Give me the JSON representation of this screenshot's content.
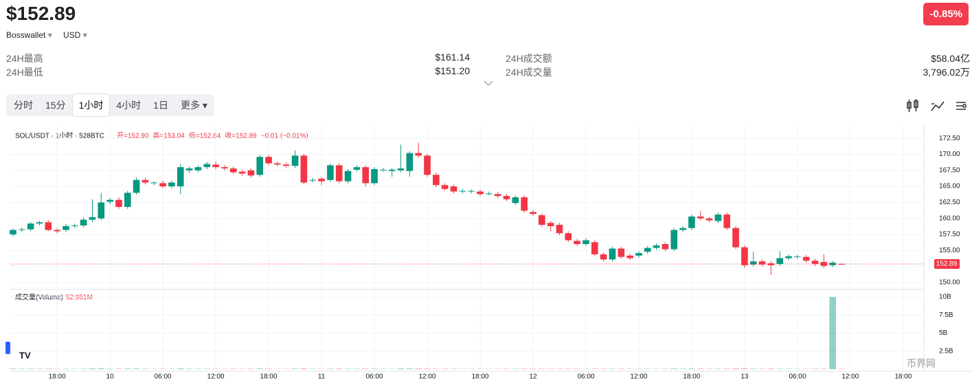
{
  "header": {
    "price": "$152.89",
    "wallet": "Bosswallet",
    "currency": "USD",
    "change": "-0.85%"
  },
  "stats": [
    {
      "label": "24H最高",
      "value": "$161.14"
    },
    {
      "label": "24H最低",
      "value": "$151.20"
    },
    {
      "label": "24H成交额",
      "value": "$58.04亿"
    },
    {
      "label": "24H成交量",
      "value": "3,796.02万"
    }
  ],
  "tabs": [
    "分时",
    "15分",
    "1小时",
    "4小时",
    "1日",
    "更多"
  ],
  "watermark": "币界网",
  "chart_data": {
    "type": "candlestick",
    "legend": {
      "symbol": "SOL/USDT · 1小时 · 528BTC",
      "items": [
        "开=152.90",
        "高=153.04",
        "低=152.84",
        "收=152.89",
        "−0.01 (−0.01%)"
      ]
    },
    "volume_title": "成交量(Volume)",
    "volume_value": "52.951M",
    "last_price": 152.89,
    "up_color": "#089981",
    "down_color": "#f23645",
    "xlim": [
      -0.31,
      103.35
    ],
    "xticks": [
      {
        "value": 5,
        "label": "18:00"
      },
      {
        "value": 11,
        "label": "10"
      },
      {
        "value": 17,
        "label": "06:00"
      },
      {
        "value": 23,
        "label": "12:00"
      },
      {
        "value": 29,
        "label": "18:00"
      },
      {
        "value": 35,
        "label": "11"
      },
      {
        "value": 41,
        "label": "06:00"
      },
      {
        "value": 47,
        "label": "12:00"
      },
      {
        "value": 53,
        "label": "18:00"
      },
      {
        "value": 59,
        "label": "12"
      },
      {
        "value": 65,
        "label": "06:00"
      },
      {
        "value": 71,
        "label": "12:00"
      },
      {
        "value": 77,
        "label": "18:00"
      },
      {
        "value": 83,
        "label": "13"
      },
      {
        "value": 89,
        "label": "06:00"
      },
      {
        "value": 95,
        "label": "12:00"
      },
      {
        "value": 101,
        "label": "18:00"
      }
    ],
    "ylim": [
      149.03,
      174.45
    ],
    "yticks": [
      {
        "value": 150,
        "label": "150.00"
      },
      {
        "value": 152.5,
        "label": "152.50"
      },
      {
        "value": 155,
        "label": "155.00"
      },
      {
        "value": 157.5,
        "label": "157.50"
      },
      {
        "value": 160,
        "label": "160.00"
      },
      {
        "value": 162.5,
        "label": "162.50"
      },
      {
        "value": 165,
        "label": "165.00"
      },
      {
        "value": 167.5,
        "label": "167.50"
      },
      {
        "value": 170,
        "label": "170.00"
      },
      {
        "value": 172.5,
        "label": "172.50"
      }
    ],
    "y2lim": [
      -0.29,
      10.95
    ],
    "y2ticks": [
      {
        "value": 2.5,
        "label": "2.5B"
      },
      {
        "value": 5,
        "label": "5B"
      },
      {
        "value": 7.5,
        "label": "7.5B"
      },
      {
        "value": 10,
        "label": "10B"
      }
    ],
    "candles": [
      [
        157.5,
        158.4,
        157.2,
        158.2
      ],
      [
        158.2,
        158.6,
        157.9,
        158.3
      ],
      [
        158.3,
        159.4,
        158.0,
        159.2
      ],
      [
        159.2,
        159.6,
        158.9,
        159.4
      ],
      [
        159.4,
        159.7,
        158.0,
        158.2
      ],
      [
        158.2,
        158.5,
        157.7,
        158.0
      ],
      [
        158.2,
        159.1,
        157.9,
        158.8
      ],
      [
        158.8,
        159.2,
        158.5,
        158.9
      ],
      [
        158.9,
        160.2,
        158.6,
        159.8
      ],
      [
        159.8,
        163.0,
        159.4,
        160.2
      ],
      [
        160.0,
        164.0,
        159.7,
        162.5
      ],
      [
        162.6,
        163.2,
        162.2,
        162.9
      ],
      [
        162.9,
        163.3,
        161.5,
        161.8
      ],
      [
        161.8,
        164.3,
        161.5,
        164.0
      ],
      [
        164.0,
        166.4,
        163.7,
        166.0
      ],
      [
        166.0,
        166.3,
        165.3,
        165.6
      ],
      [
        165.5,
        165.8,
        165.2,
        165.6
      ],
      [
        165.5,
        165.9,
        164.7,
        165.0
      ],
      [
        165.0,
        165.9,
        164.7,
        165.6
      ],
      [
        165.0,
        168.5,
        163.8,
        168.0
      ],
      [
        167.5,
        168.1,
        167.1,
        167.8
      ],
      [
        167.5,
        168.3,
        167.2,
        168.0
      ],
      [
        168.0,
        168.8,
        167.7,
        168.5
      ],
      [
        168.4,
        168.9,
        167.7,
        168.0
      ],
      [
        168.0,
        168.3,
        167.5,
        167.8
      ],
      [
        167.8,
        168.1,
        166.9,
        167.2
      ],
      [
        167.3,
        167.6,
        166.7,
        167.0
      ],
      [
        167.5,
        167.8,
        166.4,
        166.7
      ],
      [
        166.8,
        169.9,
        166.5,
        169.6
      ],
      [
        169.6,
        169.9,
        168.3,
        168.6
      ],
      [
        168.6,
        168.9,
        168.1,
        168.4
      ],
      [
        168.4,
        168.7,
        167.9,
        168.2
      ],
      [
        168.2,
        170.6,
        167.9,
        169.8
      ],
      [
        169.8,
        170.1,
        165.3,
        165.6
      ],
      [
        165.9,
        166.3,
        165.6,
        166.0
      ],
      [
        166.2,
        166.5,
        165.2,
        165.8
      ],
      [
        166.0,
        168.6,
        165.7,
        168.3
      ],
      [
        168.3,
        168.6,
        165.5,
        165.8
      ],
      [
        165.8,
        167.7,
        165.5,
        167.4
      ],
      [
        167.6,
        168.3,
        167.3,
        168.0
      ],
      [
        168.0,
        168.3,
        165.0,
        165.5
      ],
      [
        165.5,
        168.0,
        165.2,
        167.7
      ],
      [
        167.5,
        167.9,
        167.3,
        167.6
      ],
      [
        167.4,
        167.9,
        166.5,
        167.6
      ],
      [
        167.5,
        171.5,
        167.2,
        167.8
      ],
      [
        167.4,
        170.5,
        166.5,
        170.2
      ],
      [
        170.2,
        171.8,
        169.5,
        169.8
      ],
      [
        169.8,
        170.1,
        166.5,
        166.8
      ],
      [
        166.8,
        167.1,
        164.9,
        165.2
      ],
      [
        165.2,
        165.5,
        164.3,
        164.6
      ],
      [
        165.0,
        165.3,
        163.9,
        164.2
      ],
      [
        164.2,
        164.6,
        163.9,
        164.3
      ],
      [
        164.2,
        164.5,
        163.9,
        164.3
      ],
      [
        164.2,
        164.5,
        163.5,
        163.8
      ],
      [
        163.8,
        164.2,
        163.6,
        163.9
      ],
      [
        163.8,
        164.1,
        163.2,
        163.5
      ],
      [
        163.5,
        163.8,
        162.7,
        163.0
      ],
      [
        162.4,
        163.6,
        162.1,
        163.3
      ],
      [
        163.3,
        163.6,
        160.9,
        161.2
      ],
      [
        161.0,
        161.3,
        160.4,
        160.7
      ],
      [
        160.5,
        160.8,
        158.7,
        159.0
      ],
      [
        159.3,
        159.6,
        158.0,
        158.8
      ],
      [
        159.0,
        159.3,
        157.4,
        157.7
      ],
      [
        157.7,
        158.0,
        156.3,
        156.6
      ],
      [
        156.5,
        156.8,
        155.7,
        156.0
      ],
      [
        156.0,
        156.9,
        155.7,
        156.6
      ],
      [
        156.3,
        156.6,
        154.1,
        154.4
      ],
      [
        154.4,
        154.7,
        153.3,
        153.6
      ],
      [
        153.6,
        155.6,
        153.3,
        155.3
      ],
      [
        155.3,
        155.6,
        153.7,
        154.0
      ],
      [
        154.2,
        154.5,
        153.5,
        153.8
      ],
      [
        154.2,
        154.9,
        153.9,
        154.6
      ],
      [
        154.8,
        155.7,
        154.5,
        155.4
      ],
      [
        155.4,
        156.1,
        155.1,
        155.8
      ],
      [
        156.0,
        156.3,
        154.9,
        155.2
      ],
      [
        155.2,
        158.5,
        154.9,
        158.2
      ],
      [
        158.2,
        158.8,
        157.9,
        158.5
      ],
      [
        158.5,
        160.6,
        158.2,
        160.3
      ],
      [
        160.3,
        161.2,
        159.7,
        160.0
      ],
      [
        160.0,
        160.3,
        159.4,
        159.7
      ],
      [
        159.6,
        160.9,
        159.3,
        160.6
      ],
      [
        160.6,
        160.9,
        158.2,
        158.5
      ],
      [
        158.5,
        158.8,
        155.2,
        155.5
      ],
      [
        155.5,
        155.8,
        152.3,
        152.7
      ],
      [
        152.8,
        154.8,
        152.5,
        153.3
      ],
      [
        153.3,
        153.6,
        152.5,
        152.8
      ],
      [
        153.0,
        153.3,
        151.2,
        152.7
      ],
      [
        152.9,
        154.9,
        152.6,
        153.8
      ],
      [
        153.8,
        154.4,
        153.5,
        154.1
      ],
      [
        154.0,
        154.3,
        153.7,
        154.1
      ],
      [
        154.0,
        154.3,
        153.1,
        153.4
      ],
      [
        153.4,
        153.7,
        152.6,
        152.9
      ],
      [
        153.2,
        154.4,
        152.3,
        152.6
      ],
      [
        152.7,
        153.4,
        152.4,
        153.1
      ],
      [
        152.9,
        153.04,
        152.84,
        152.89
      ]
    ],
    "volumes": [
      0.08,
      0.05,
      0.06,
      0.05,
      0.07,
      0.04,
      0.05,
      0.04,
      0.06,
      0.1,
      0.12,
      0.06,
      0.07,
      0.08,
      0.1,
      0.05,
      0.04,
      0.05,
      0.04,
      0.1,
      0.06,
      0.05,
      0.06,
      0.05,
      0.04,
      0.05,
      0.04,
      0.05,
      0.09,
      0.06,
      0.04,
      0.04,
      0.08,
      0.1,
      0.05,
      0.04,
      0.07,
      0.08,
      0.06,
      0.05,
      0.08,
      0.07,
      0.04,
      0.04,
      0.1,
      0.1,
      0.09,
      0.08,
      0.06,
      0.05,
      0.05,
      0.04,
      0.04,
      0.04,
      0.04,
      0.04,
      0.05,
      0.05,
      0.07,
      0.05,
      0.06,
      0.05,
      0.05,
      0.06,
      0.05,
      0.04,
      0.07,
      0.06,
      0.06,
      0.05,
      0.04,
      0.04,
      0.05,
      0.04,
      0.05,
      0.09,
      0.06,
      0.08,
      0.07,
      0.05,
      0.06,
      0.07,
      0.1,
      0.12,
      0.07,
      0.05,
      0.08,
      0.06,
      0.05,
      0.04,
      0.04,
      0.05,
      0.06,
      10,
      0.052951
    ]
  }
}
